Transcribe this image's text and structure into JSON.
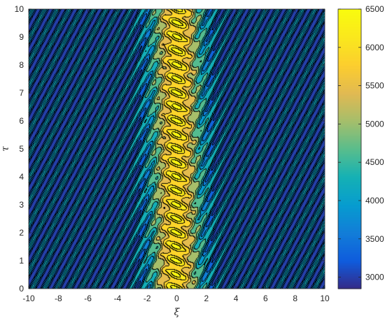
{
  "chart_data": {
    "type": "heatmap",
    "subtype": "filled-contour",
    "title": "",
    "xlabel": "ξ",
    "ylabel": "τ",
    "xlim": [
      -10,
      10
    ],
    "ylim": [
      0,
      10
    ],
    "xticks": [
      -10,
      -8,
      -6,
      -4,
      -2,
      0,
      2,
      4,
      6,
      8,
      10
    ],
    "yticks": [
      0,
      1,
      2,
      3,
      4,
      5,
      6,
      7,
      8,
      9,
      10
    ],
    "xtick_labels": [
      "-10",
      "-8",
      "-6",
      "-4",
      "-2",
      "0",
      "2",
      "4",
      "6",
      "8",
      "10"
    ],
    "ytick_labels": [
      "0",
      "1",
      "2",
      "3",
      "4",
      "5",
      "6",
      "7",
      "8",
      "9",
      "10"
    ],
    "colorbar": {
      "colormap": "parula",
      "range": [
        2850,
        6500
      ],
      "ticks": [
        3000,
        3500,
        4000,
        4500,
        5000,
        5500,
        6000,
        6500
      ],
      "tick_labels": [
        "3000",
        "3500",
        "4000",
        "4500",
        "5000",
        "5500",
        "6000",
        "6500"
      ]
    },
    "field": {
      "description_values": {
        "background_min": 2850,
        "background_max": 4100,
        "peak_max": 6500,
        "stripe_direction_dxi_per_dtau": 1.0,
        "stripe_spacing_xi": 0.83,
        "central_band_center_at_tau0": -0.05,
        "central_band_center_at_tau10": 0.05,
        "central_band_half_width_xi": 1.1,
        "central_ripple_period_tau": 0.5
      }
    },
    "grid": false,
    "legend": "none"
  }
}
